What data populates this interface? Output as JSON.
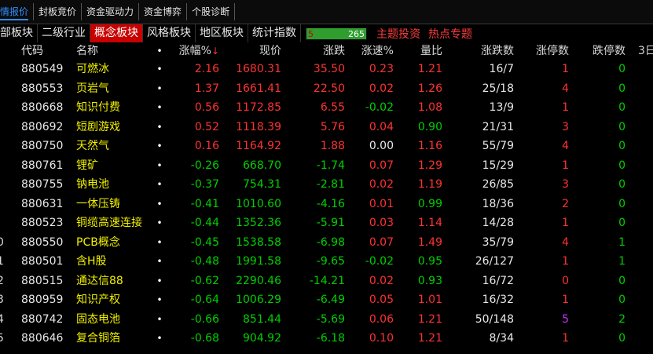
{
  "colors": {
    "up": "#ff3232",
    "down": "#00d000",
    "flat": "#e8e8e8",
    "name": "#f0f000",
    "active_tab": "#c80000",
    "link": "#2f8fff",
    "purple": "#c030ff"
  },
  "top_tabs": [
    "情报价",
    "封板竞价",
    "资金驱动力",
    "资金博弈",
    "个股诊断"
  ],
  "category_tabs": [
    "部板块",
    "二级行业",
    "概念板块",
    "风格板块",
    "地区板块",
    "统计指数"
  ],
  "active_category": "概念板块",
  "stat_box": {
    "left": "5",
    "right": "265"
  },
  "red_links": [
    "主题投资",
    "热点专题"
  ],
  "columns": {
    "code": "代码",
    "name": "名称",
    "dot": "•",
    "pct": "涨幅%",
    "sort_icon": "↓",
    "price": "现价",
    "change": "涨跌",
    "speed": "涨速%",
    "ratio": "量比",
    "updown": "涨跌数",
    "limit_up": "涨停数",
    "limit_down": "跌停数",
    "extra": "3日"
  },
  "rows": [
    {
      "idx": "",
      "code": "880549",
      "name": "可燃冰",
      "pct": "2.16",
      "price": "1680.31",
      "change": "35.50",
      "speed": "0.23",
      "ratio": "1.21",
      "updown": "16/7",
      "limit_up": "1",
      "limit_down": "0"
    },
    {
      "idx": "",
      "code": "880553",
      "name": "页岩气",
      "pct": "1.37",
      "price": "1661.41",
      "change": "22.50",
      "speed": "0.02",
      "ratio": "1.26",
      "updown": "25/18",
      "limit_up": "4",
      "limit_down": "0"
    },
    {
      "idx": "",
      "code": "880668",
      "name": "知识付费",
      "pct": "0.56",
      "price": "1172.85",
      "change": "6.55",
      "speed": "-0.02",
      "ratio": "1.08",
      "updown": "13/9",
      "limit_up": "1",
      "limit_down": "0"
    },
    {
      "idx": "",
      "code": "880692",
      "name": "短剧游戏",
      "pct": "0.52",
      "price": "1118.39",
      "change": "5.76",
      "speed": "0.04",
      "ratio": "0.90",
      "updown": "21/31",
      "limit_up": "3",
      "limit_down": "0"
    },
    {
      "idx": "",
      "code": "880750",
      "name": "天然气",
      "pct": "0.16",
      "price": "1164.92",
      "change": "1.88",
      "speed": "0.00",
      "ratio": "1.16",
      "updown": "55/79",
      "limit_up": "4",
      "limit_down": "0"
    },
    {
      "idx": "",
      "code": "880761",
      "name": "锂矿",
      "pct": "-0.26",
      "price": "668.70",
      "change": "-1.74",
      "speed": "0.07",
      "ratio": "1.29",
      "updown": "15/29",
      "limit_up": "1",
      "limit_down": "0"
    },
    {
      "idx": "",
      "code": "880755",
      "name": "钠电池",
      "pct": "-0.37",
      "price": "754.31",
      "change": "-2.81",
      "speed": "0.02",
      "ratio": "1.19",
      "updown": "26/85",
      "limit_up": "3",
      "limit_down": "0"
    },
    {
      "idx": "",
      "code": "880631",
      "name": "一体压铸",
      "pct": "-0.41",
      "price": "1010.60",
      "change": "-4.16",
      "speed": "0.01",
      "ratio": "0.99",
      "updown": "18/36",
      "limit_up": "2",
      "limit_down": "0"
    },
    {
      "idx": "",
      "code": "880523",
      "name": "铜缆高速连接",
      "pct": "-0.44",
      "price": "1352.36",
      "change": "-5.91",
      "speed": "0.03",
      "ratio": "1.14",
      "updown": "14/28",
      "limit_up": "1",
      "limit_down": "0"
    },
    {
      "idx": "0",
      "code": "880550",
      "name": "PCB概念",
      "pct": "-0.45",
      "price": "1538.58",
      "change": "-6.98",
      "speed": "0.07",
      "ratio": "1.49",
      "updown": "35/79",
      "limit_up": "4",
      "limit_down": "1"
    },
    {
      "idx": "1",
      "code": "880501",
      "name": "含H股",
      "pct": "-0.48",
      "price": "1991.58",
      "change": "-9.65",
      "speed": "-0.02",
      "ratio": "0.95",
      "updown": "26/127",
      "limit_up": "1",
      "limit_down": "1"
    },
    {
      "idx": "2",
      "code": "880515",
      "name": "通达信88",
      "pct": "-0.62",
      "price": "2290.46",
      "change": "-14.21",
      "speed": "0.02",
      "ratio": "0.93",
      "updown": "16/72",
      "limit_up": "0",
      "limit_down": "0"
    },
    {
      "idx": "3",
      "code": "880959",
      "name": "知识产权",
      "pct": "-0.64",
      "price": "1006.29",
      "change": "-6.49",
      "speed": "0.05",
      "ratio": "1.01",
      "updown": "16/32",
      "limit_up": "1",
      "limit_down": "0"
    },
    {
      "idx": "4",
      "code": "880742",
      "name": "固态电池",
      "pct": "-0.66",
      "price": "851.44",
      "change": "-5.69",
      "speed": "0.06",
      "ratio": "1.21",
      "updown": "50/148",
      "limit_up": "5",
      "limit_down": "2"
    },
    {
      "idx": "5",
      "code": "880646",
      "name": "复合铜箔",
      "pct": "-0.68",
      "price": "904.92",
      "change": "-6.18",
      "speed": "0.10",
      "ratio": "1.21",
      "updown": "8/34",
      "limit_up": "1",
      "limit_down": "0"
    }
  ]
}
